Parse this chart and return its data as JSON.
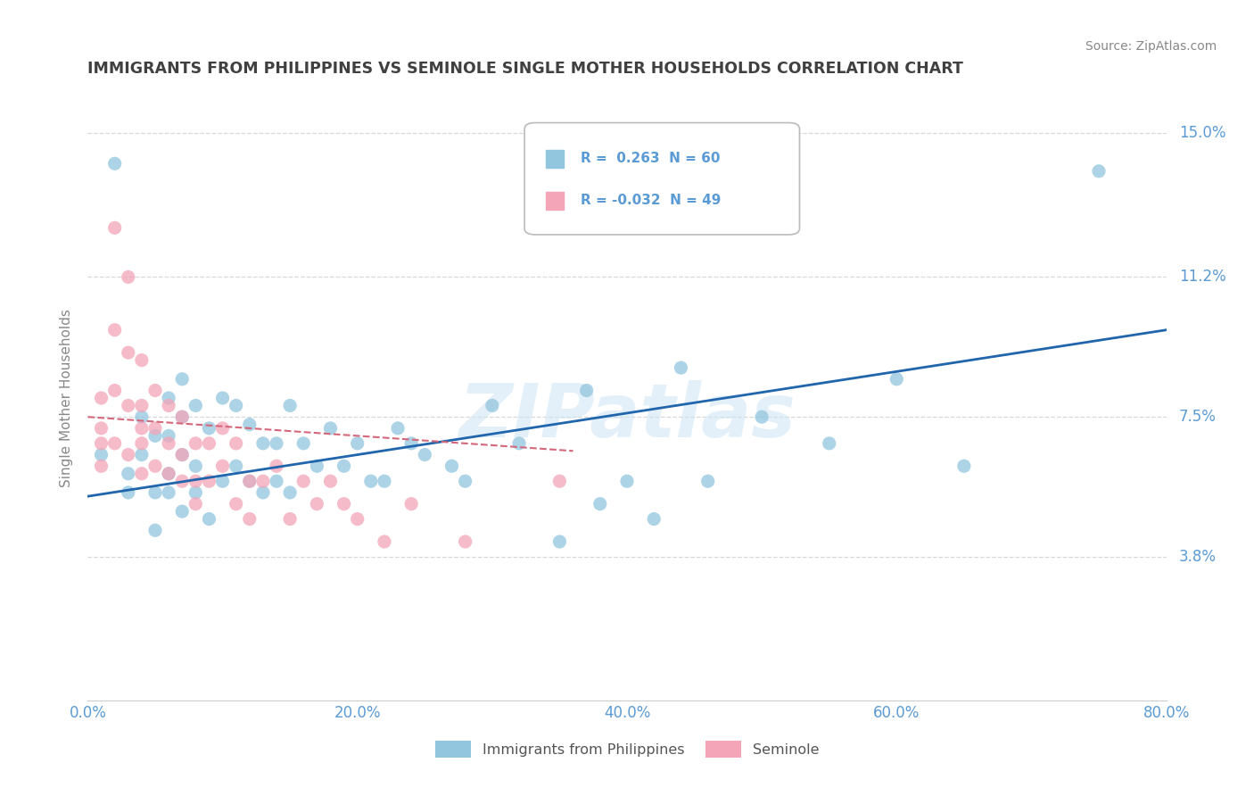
{
  "title": "IMMIGRANTS FROM PHILIPPINES VS SEMINOLE SINGLE MOTHER HOUSEHOLDS CORRELATION CHART",
  "source": "Source: ZipAtlas.com",
  "ylabel": "Single Mother Households",
  "watermark": "ZIPatlas",
  "xlim": [
    0.0,
    0.8
  ],
  "ylim": [
    0.0,
    0.16
  ],
  "yticks": [
    0.038,
    0.075,
    0.112,
    0.15
  ],
  "ytick_labels": [
    "3.8%",
    "7.5%",
    "11.2%",
    "15.0%"
  ],
  "xticks": [
    0.0,
    0.2,
    0.4,
    0.6,
    0.8
  ],
  "xtick_labels": [
    "0.0%",
    "20.0%",
    "40.0%",
    "60.0%",
    "80.0%"
  ],
  "blue_color": "#92c5de",
  "pink_color": "#f4a5b8",
  "blue_line_color": "#2166ac",
  "pink_line_color": "#d4677a",
  "title_color": "#404040",
  "axis_label_color": "#5b9bd5",
  "grid_color": "#d8d8d8",
  "blue_R": 0.263,
  "pink_R": -0.032,
  "blue_N": 60,
  "pink_N": 49,
  "blue_scatter_x": [
    0.01,
    0.02,
    0.03,
    0.03,
    0.04,
    0.04,
    0.05,
    0.05,
    0.05,
    0.06,
    0.06,
    0.06,
    0.06,
    0.07,
    0.07,
    0.07,
    0.07,
    0.08,
    0.08,
    0.08,
    0.09,
    0.09,
    0.1,
    0.1,
    0.11,
    0.11,
    0.12,
    0.12,
    0.13,
    0.13,
    0.14,
    0.14,
    0.15,
    0.15,
    0.16,
    0.17,
    0.18,
    0.19,
    0.2,
    0.21,
    0.22,
    0.23,
    0.24,
    0.25,
    0.27,
    0.28,
    0.3,
    0.32,
    0.35,
    0.37,
    0.38,
    0.4,
    0.42,
    0.44,
    0.46,
    0.5,
    0.55,
    0.6,
    0.65,
    0.75
  ],
  "blue_scatter_y": [
    0.065,
    0.142,
    0.06,
    0.055,
    0.075,
    0.065,
    0.07,
    0.055,
    0.045,
    0.08,
    0.07,
    0.06,
    0.055,
    0.085,
    0.075,
    0.065,
    0.05,
    0.078,
    0.062,
    0.055,
    0.072,
    0.048,
    0.08,
    0.058,
    0.078,
    0.062,
    0.073,
    0.058,
    0.068,
    0.055,
    0.068,
    0.058,
    0.078,
    0.055,
    0.068,
    0.062,
    0.072,
    0.062,
    0.068,
    0.058,
    0.058,
    0.072,
    0.068,
    0.065,
    0.062,
    0.058,
    0.078,
    0.068,
    0.042,
    0.082,
    0.052,
    0.058,
    0.048,
    0.088,
    0.058,
    0.075,
    0.068,
    0.085,
    0.062,
    0.14
  ],
  "pink_scatter_x": [
    0.01,
    0.01,
    0.01,
    0.01,
    0.02,
    0.02,
    0.02,
    0.02,
    0.03,
    0.03,
    0.03,
    0.03,
    0.04,
    0.04,
    0.04,
    0.04,
    0.04,
    0.05,
    0.05,
    0.05,
    0.06,
    0.06,
    0.06,
    0.07,
    0.07,
    0.07,
    0.08,
    0.08,
    0.08,
    0.09,
    0.09,
    0.1,
    0.1,
    0.11,
    0.11,
    0.12,
    0.12,
    0.13,
    0.14,
    0.15,
    0.16,
    0.17,
    0.18,
    0.19,
    0.2,
    0.22,
    0.24,
    0.28,
    0.35
  ],
  "pink_scatter_y": [
    0.08,
    0.072,
    0.068,
    0.062,
    0.125,
    0.098,
    0.082,
    0.068,
    0.112,
    0.092,
    0.078,
    0.065,
    0.09,
    0.078,
    0.068,
    0.06,
    0.072,
    0.082,
    0.072,
    0.062,
    0.078,
    0.068,
    0.06,
    0.075,
    0.065,
    0.058,
    0.068,
    0.058,
    0.052,
    0.068,
    0.058,
    0.062,
    0.072,
    0.068,
    0.052,
    0.058,
    0.048,
    0.058,
    0.062,
    0.048,
    0.058,
    0.052,
    0.058,
    0.052,
    0.048,
    0.042,
    0.052,
    0.042,
    0.058
  ],
  "blue_trend_x": [
    0.0,
    0.8
  ],
  "blue_trend_y": [
    0.054,
    0.098
  ],
  "pink_trend_x": [
    0.0,
    0.36
  ],
  "pink_trend_y": [
    0.075,
    0.066
  ]
}
